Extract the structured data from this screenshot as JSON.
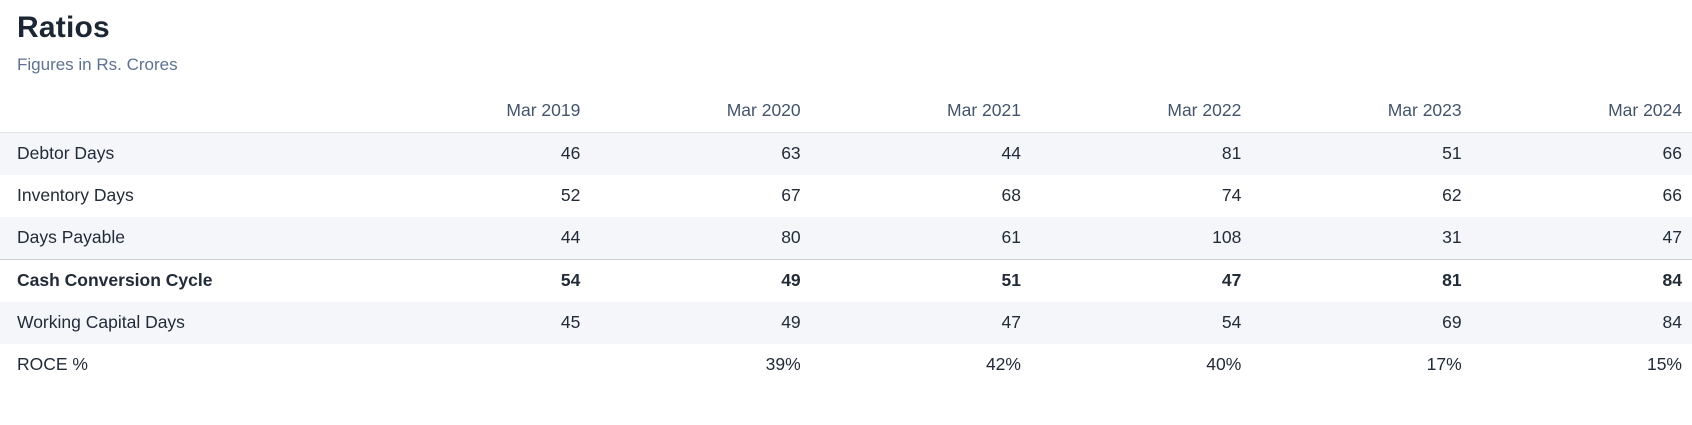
{
  "page": {
    "title": "Ratios",
    "subtitle": "Figures in Rs. Crores"
  },
  "colors": {
    "title_text": "#1c2733",
    "subtitle_text": "#5e7290",
    "header_text": "#44546a",
    "cell_text": "#222b38",
    "stripe_background": "#f5f6fa",
    "header_border": "#e0e3e8",
    "strong_row_border": "#c9cfd7"
  },
  "table": {
    "columns": [
      "Mar 2019",
      "Mar 2020",
      "Mar 2021",
      "Mar 2022",
      "Mar 2023",
      "Mar 2024"
    ],
    "rows": [
      {
        "label": "Debtor Days",
        "values": [
          "46",
          "63",
          "44",
          "81",
          "51",
          "66"
        ],
        "strong": false,
        "striped": true
      },
      {
        "label": "Inventory Days",
        "values": [
          "52",
          "67",
          "68",
          "74",
          "62",
          "66"
        ],
        "strong": false,
        "striped": false
      },
      {
        "label": "Days Payable",
        "values": [
          "44",
          "80",
          "61",
          "108",
          "31",
          "47"
        ],
        "strong": false,
        "striped": true
      },
      {
        "label": "Cash Conversion Cycle",
        "values": [
          "54",
          "49",
          "51",
          "47",
          "81",
          "84"
        ],
        "strong": true,
        "striped": false
      },
      {
        "label": "Working Capital Days",
        "values": [
          "45",
          "49",
          "47",
          "54",
          "69",
          "84"
        ],
        "strong": false,
        "striped": true
      },
      {
        "label": "ROCE %",
        "values": [
          "",
          "39%",
          "42%",
          "40%",
          "17%",
          "15%"
        ],
        "strong": false,
        "striped": false
      }
    ]
  }
}
